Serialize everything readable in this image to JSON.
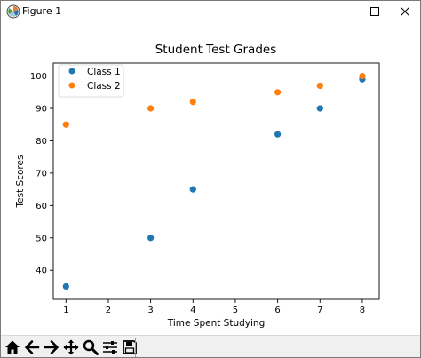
{
  "window": {
    "title": "Figure 1",
    "icon": "matplotlib-icon",
    "controls": [
      "minimize-icon",
      "maximize-icon",
      "close-icon"
    ]
  },
  "toolbar": {
    "buttons": [
      "home-icon",
      "back-icon",
      "forward-icon",
      "pan-icon",
      "zoom-icon",
      "configure-subplots-icon",
      "save-icon"
    ]
  },
  "chart_data": {
    "type": "scatter",
    "title": "Student Test Grades",
    "xlabel": "Time Spent Studying",
    "ylabel": "Test Scores",
    "xlim": [
      0.7,
      8.4
    ],
    "ylim": [
      31,
      104
    ],
    "xticks": [
      1,
      2,
      3,
      4,
      5,
      6,
      7,
      8
    ],
    "yticks": [
      40,
      50,
      60,
      70,
      80,
      90,
      100
    ],
    "grid": false,
    "legend_position": "top-left",
    "series": [
      {
        "name": "Class 1",
        "color": "#1f77b4",
        "x": [
          1,
          3,
          4,
          6,
          7,
          8
        ],
        "y": [
          35,
          50,
          65,
          82,
          90,
          99
        ]
      },
      {
        "name": "Class 2",
        "color": "#ff7f0e",
        "x": [
          1,
          3,
          4,
          6,
          7,
          8
        ],
        "y": [
          85,
          90,
          92,
          95,
          97,
          100
        ]
      }
    ]
  }
}
